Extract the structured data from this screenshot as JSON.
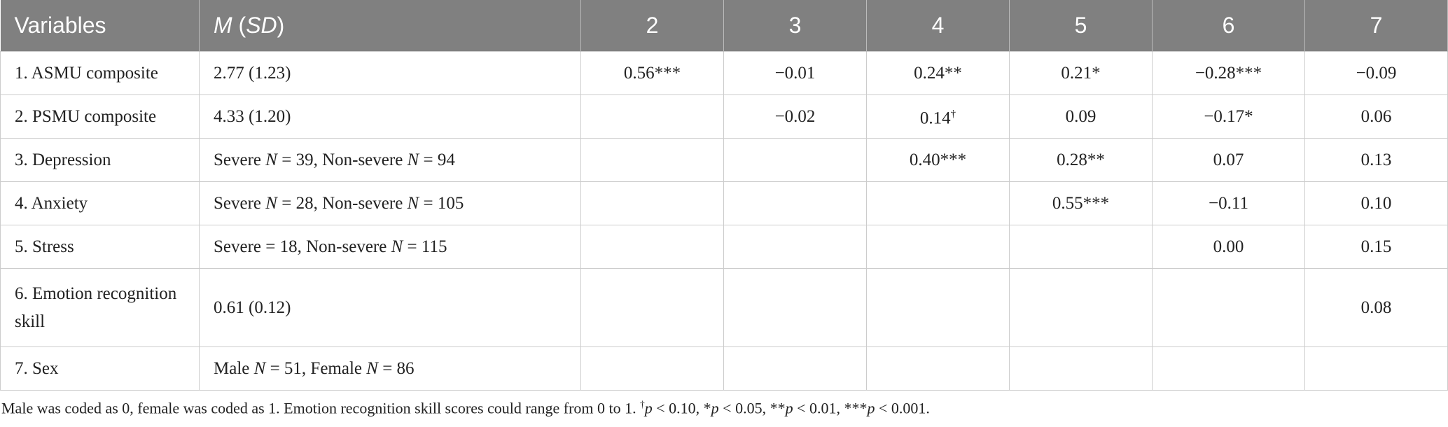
{
  "table": {
    "header": [
      "Variables",
      "M (SD)",
      "2",
      "3",
      "4",
      "5",
      "6",
      "7"
    ],
    "rows": [
      [
        "1. ASMU composite",
        "2.77 (1.23)",
        "0.56***",
        "−0.01",
        "0.24**",
        "0.21*",
        "−0.28***",
        "−0.09"
      ],
      [
        "2. PSMU composite",
        "4.33 (1.20)",
        null,
        "−0.02",
        "0.14†",
        "0.09",
        "−0.17*",
        "0.06"
      ],
      [
        "3. Depression",
        "Severe N = 39, Non-severe N = 94",
        null,
        null,
        "0.40***",
        "0.28**",
        "0.07",
        "0.13"
      ],
      [
        "4. Anxiety",
        "Severe N = 28, Non-severe N = 105",
        null,
        null,
        null,
        "0.55***",
        "−0.11",
        "0.10"
      ],
      [
        "5. Stress",
        "Severe = 18, Non-severe N = 115",
        null,
        null,
        null,
        null,
        "0.00",
        "0.15"
      ],
      [
        "6. Emotion recognition skill",
        "0.61 (0.12)",
        null,
        null,
        null,
        null,
        null,
        "0.08"
      ],
      [
        "7. Sex",
        "Male N = 51, Female N = 86",
        null,
        null,
        null,
        null,
        null,
        null
      ]
    ],
    "footnote": "Male was coded as 0, female was coded as 1. Emotion recognition skill scores could range from 0 to 1. †p < 0.10, *p < 0.05, **p < 0.01, ***p < 0.001."
  }
}
